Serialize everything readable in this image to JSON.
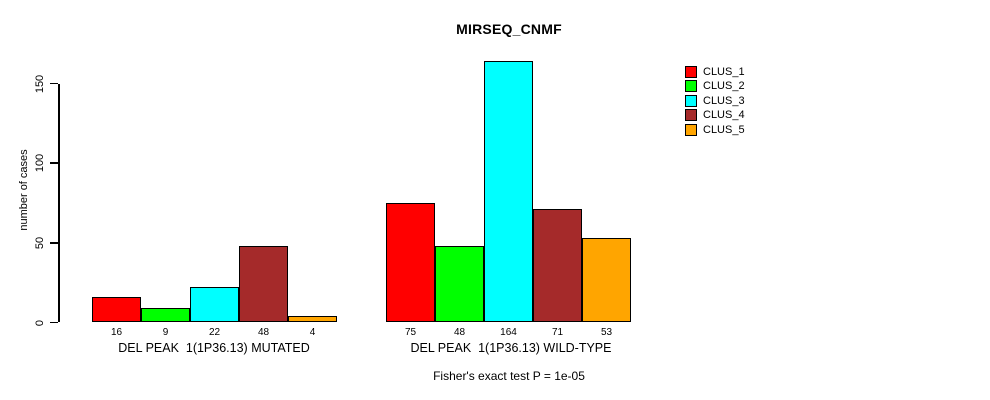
{
  "chart_data": {
    "type": "bar",
    "title": "MIRSEQ_CNMF",
    "ylabel": "number of cases",
    "xlabel": "",
    "categories": [
      "DEL PEAK  1(1P36.13) MUTATED",
      "DEL PEAK  1(1P36.13) WILD-TYPE"
    ],
    "series": [
      {
        "name": "CLUS_1",
        "color": "#ff0000",
        "values": [
          16,
          75
        ]
      },
      {
        "name": "CLUS_2",
        "color": "#00ff00",
        "values": [
          9,
          48
        ]
      },
      {
        "name": "CLUS_3",
        "color": "#00ffff",
        "values": [
          22,
          164
        ]
      },
      {
        "name": "CLUS_4",
        "color": "#a52a2a",
        "values": [
          48,
          71
        ]
      },
      {
        "name": "CLUS_5",
        "color": "#ffa500",
        "values": [
          4,
          53
        ]
      }
    ],
    "bar_value_labels_shown": true,
    "yticks": [
      0,
      50,
      100,
      150
    ],
    "ylim": [
      0,
      170
    ],
    "grid": false,
    "legend_position": "right",
    "annotation": "Fisher's exact test P = 1e-05"
  },
  "colors": {
    "background": "#ffffff",
    "axis": "#000000",
    "text": "#000000"
  }
}
